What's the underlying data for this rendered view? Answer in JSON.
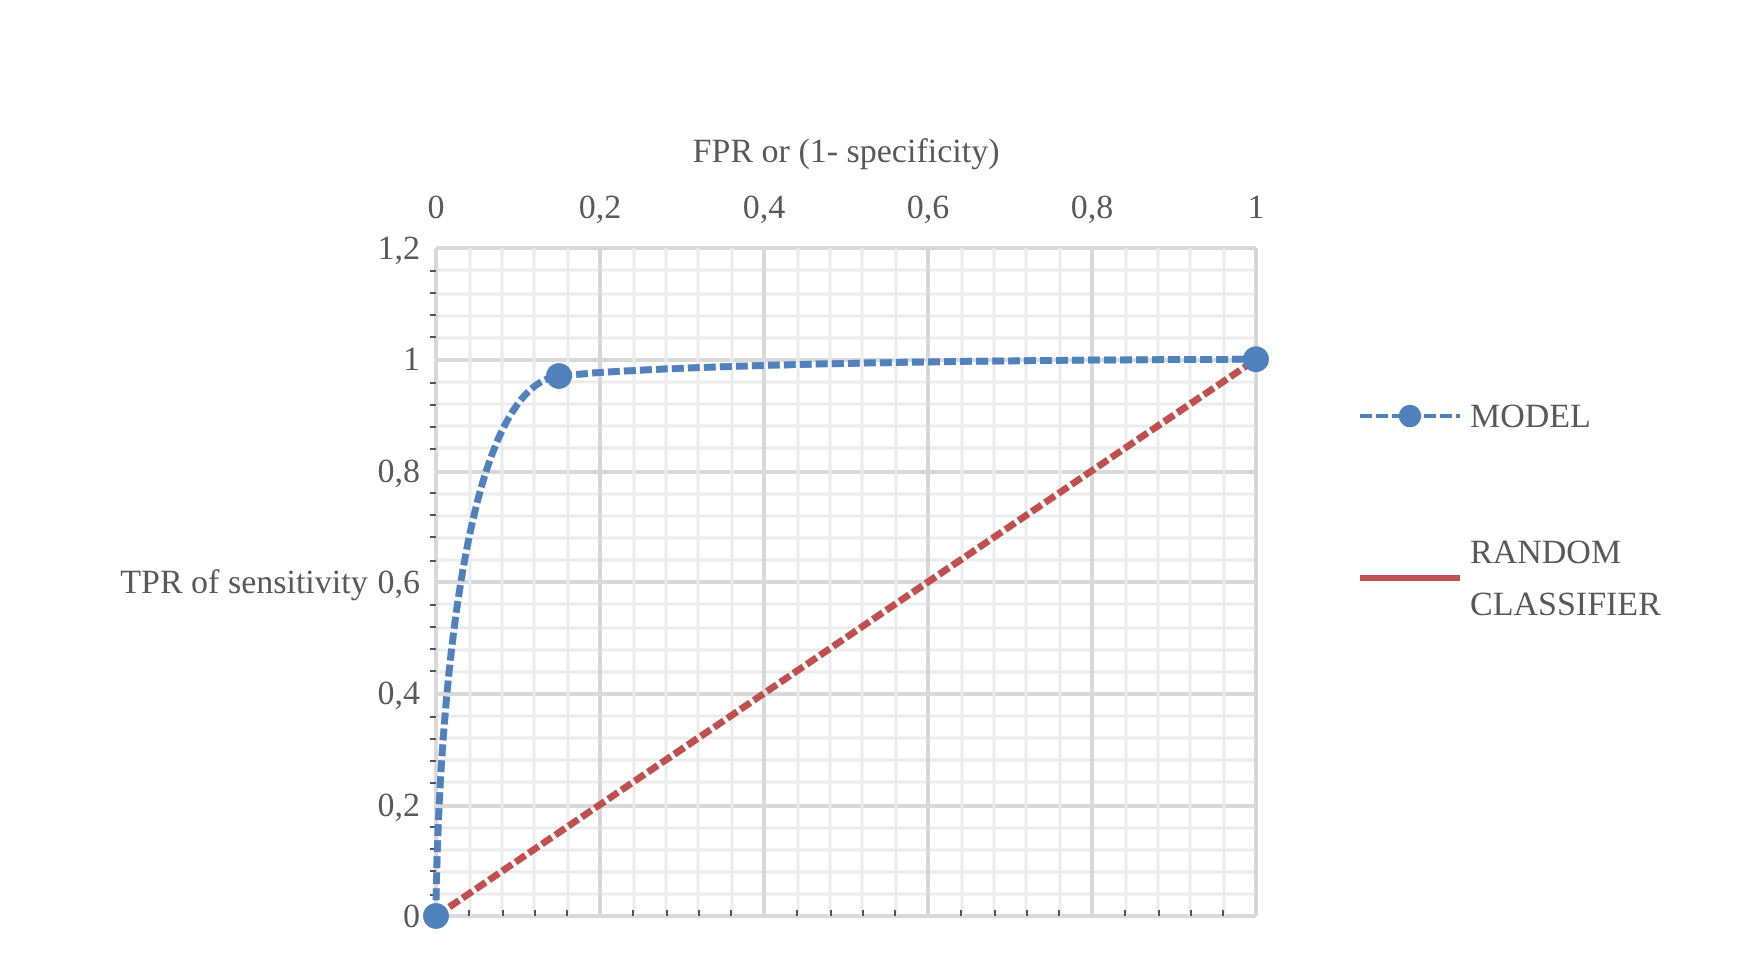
{
  "chart_data": {
    "type": "line",
    "xlabel": "FPR or (1- specificity)",
    "ylabel": "TPR of sensitivity",
    "xlim": [
      0,
      1
    ],
    "xticks": [
      0,
      {
        "value": 0.2,
        "label": "0,2"
      },
      {
        "value": 0.4,
        "label": "0,4"
      },
      {
        "value": 0.6,
        "label": "0,6"
      },
      {
        "value": 0.8,
        "label": "0,8"
      },
      1
    ],
    "ylim": [
      0,
      1.2
    ],
    "yticks": [
      0,
      {
        "value": 0.2,
        "label": "0,2"
      },
      {
        "value": 0.4,
        "label": "0,4"
      },
      {
        "value": 0.6,
        "label": "0,6"
      },
      {
        "value": 0.8,
        "label": "0,8"
      },
      1,
      {
        "value": 1.2,
        "label": "1,2"
      }
    ],
    "grid": true,
    "legend": "right",
    "line_style": "dashed",
    "series": [
      {
        "name": "MODEL",
        "color": "#4f81bd",
        "marker": "circle",
        "x": [
          0,
          0.15,
          1
        ],
        "values": [
          0,
          0.97,
          1
        ]
      },
      {
        "name": "RANDOM CLASSIFIER",
        "color": "#c0504d",
        "marker": "none",
        "x": [
          0,
          1
        ],
        "values": [
          0,
          1
        ]
      }
    ]
  }
}
